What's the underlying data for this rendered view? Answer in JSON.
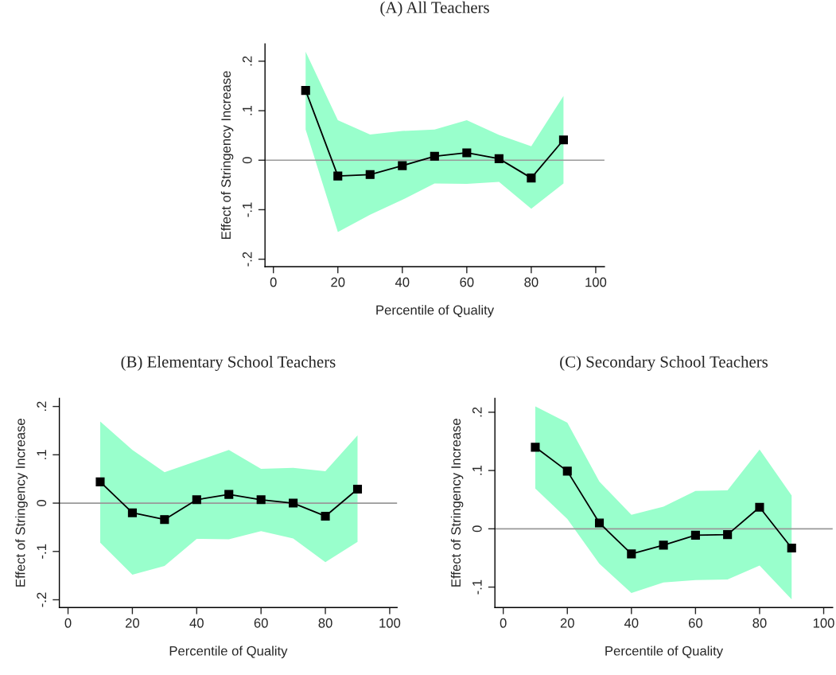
{
  "chart_data": [
    {
      "type": "line",
      "title": "(A) All Teachers",
      "xlabel": "Percentile of Quality",
      "ylabel": "Effect of Stringency Increase",
      "x": [
        10,
        20,
        30,
        40,
        50,
        60,
        70,
        80,
        90
      ],
      "series": [
        {
          "color": "#000000",
          "values": [
            0.141,
            -0.032,
            -0.029,
            -0.011,
            0.008,
            0.015,
            0.003,
            -0.036,
            0.041
          ],
          "lower": [
            0.062,
            -0.145,
            -0.11,
            -0.08,
            -0.047,
            -0.048,
            -0.044,
            -0.098,
            -0.047
          ],
          "upper": [
            0.219,
            0.081,
            0.052,
            0.059,
            0.062,
            0.081,
            0.051,
            0.028,
            0.13
          ]
        }
      ],
      "xlim": [
        -2.6,
        102.7
      ],
      "xticks": [
        0,
        20,
        40,
        60,
        80,
        100
      ],
      "ylim": [
        -0.215,
        0.235
      ],
      "yticks": [
        {
          "value": -0.2,
          "label": "-.2"
        },
        {
          "value": -0.1,
          "label": "-.1"
        },
        {
          "value": 0,
          "label": "0"
        },
        {
          "value": 0.1,
          "label": ".1"
        },
        {
          "value": 0.2,
          "label": ".2"
        }
      ],
      "ref_lines": [
        {
          "axis": "y",
          "value": 0,
          "color": "#999999"
        }
      ],
      "marker": "square",
      "line_style": "solid",
      "grid": false,
      "legend": false
    },
    {
      "type": "line",
      "title": "(B) Elementary School Teachers",
      "xlabel": "Percentile of Quality",
      "ylabel": "Effect of Stringency Increase",
      "x": [
        10,
        20,
        30,
        40,
        50,
        60,
        70,
        80,
        90
      ],
      "series": [
        {
          "color": "#000000",
          "values": [
            0.044,
            -0.02,
            -0.034,
            0.007,
            0.018,
            0.007,
            0.0,
            -0.027,
            0.029
          ],
          "lower": [
            -0.082,
            -0.148,
            -0.13,
            -0.074,
            -0.075,
            -0.058,
            -0.073,
            -0.122,
            -0.08
          ],
          "upper": [
            0.169,
            0.11,
            0.064,
            0.087,
            0.11,
            0.071,
            0.073,
            0.066,
            0.14
          ]
        }
      ],
      "xlim": [
        -2.7,
        102.3
      ],
      "xticks": [
        0,
        20,
        40,
        60,
        80,
        100
      ],
      "ylim": [
        -0.216,
        0.217
      ],
      "yticks": [
        {
          "value": -0.2,
          "label": "-.2"
        },
        {
          "value": -0.1,
          "label": "-.1"
        },
        {
          "value": 0,
          "label": "0"
        },
        {
          "value": 0.1,
          "label": ".1"
        },
        {
          "value": 0.2,
          "label": ".2"
        }
      ],
      "ref_lines": [
        {
          "axis": "y",
          "value": 0,
          "color": "#999999"
        }
      ],
      "marker": "square",
      "line_style": "solid",
      "grid": false,
      "legend": false
    },
    {
      "type": "line",
      "title": "(C) Secondary School Teachers",
      "xlabel": "Percentile of Quality",
      "ylabel": "Effect of Stringency Increase",
      "x": [
        10,
        20,
        30,
        40,
        50,
        60,
        70,
        80,
        90
      ],
      "series": [
        {
          "color": "#000000",
          "values": [
            0.14,
            0.099,
            0.01,
            -0.043,
            -0.028,
            -0.011,
            -0.01,
            0.037,
            -0.033
          ],
          "lower": [
            0.069,
            0.017,
            -0.06,
            -0.11,
            -0.092,
            -0.088,
            -0.087,
            -0.063,
            -0.121
          ],
          "upper": [
            0.21,
            0.182,
            0.081,
            0.024,
            0.038,
            0.065,
            0.066,
            0.136,
            0.057
          ]
        }
      ],
      "xlim": [
        -2.6,
        102.8
      ],
      "xticks": [
        0,
        20,
        40,
        60,
        80,
        100
      ],
      "ylim": [
        -0.135,
        0.224
      ],
      "yticks": [
        {
          "value": -0.1,
          "label": "-.1"
        },
        {
          "value": 0,
          "label": "0"
        },
        {
          "value": 0.1,
          "label": ".1"
        },
        {
          "value": 0.2,
          "label": ".2"
        }
      ],
      "ref_lines": [
        {
          "axis": "y",
          "value": 0,
          "color": "#999999"
        }
      ],
      "marker": "square",
      "line_style": "solid",
      "grid": false,
      "legend": false
    }
  ]
}
